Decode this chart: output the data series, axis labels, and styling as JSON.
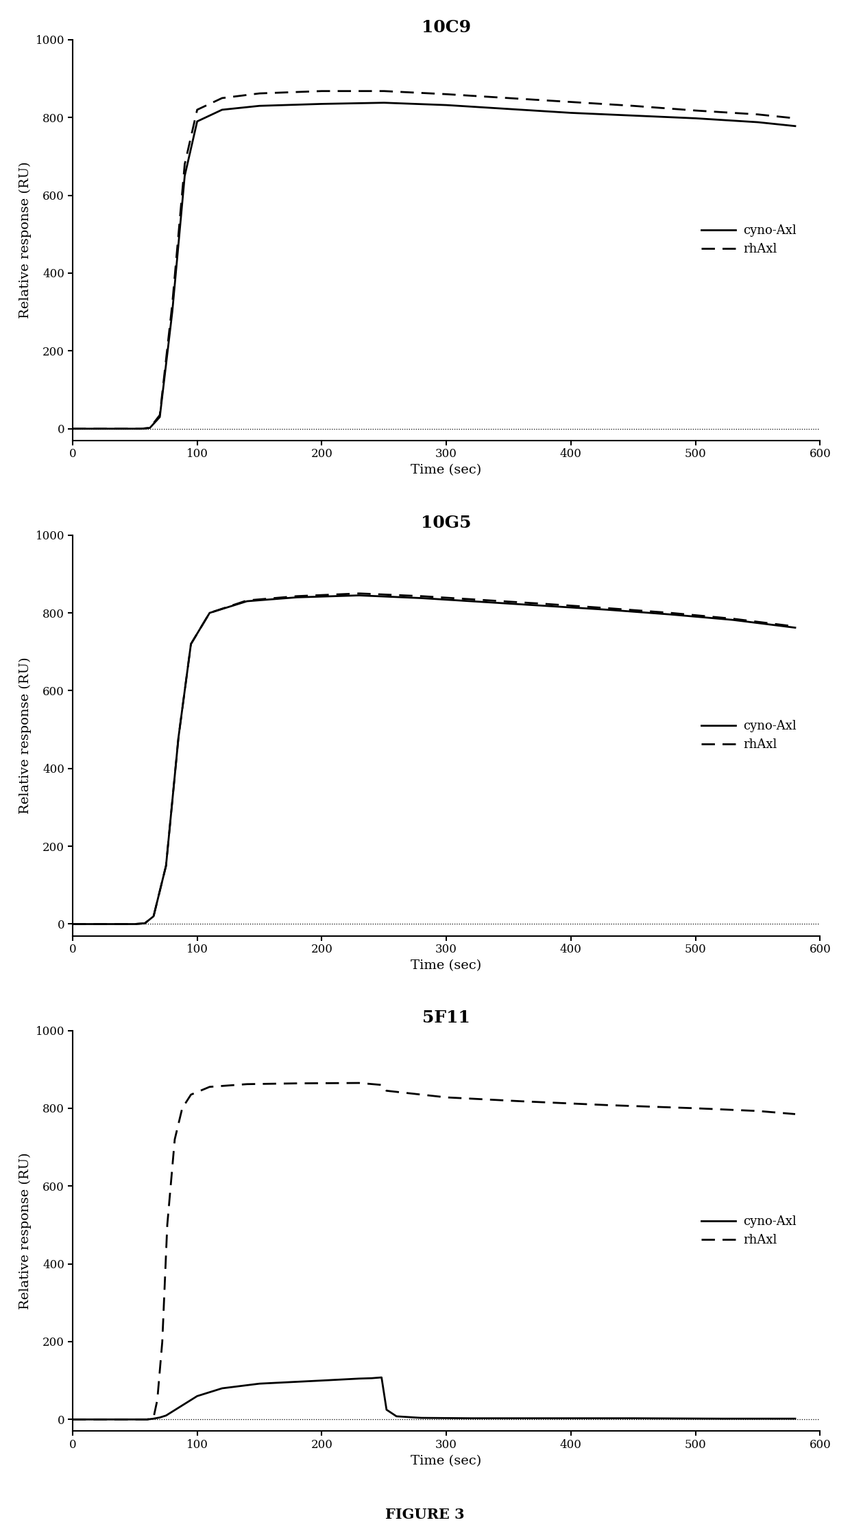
{
  "panels": [
    {
      "title": "10C9",
      "cyno_x": [
        0,
        55,
        62,
        70,
        80,
        90,
        100,
        120,
        150,
        200,
        250,
        300,
        350,
        400,
        450,
        500,
        550,
        580
      ],
      "cyno_y": [
        0,
        0,
        2,
        30,
        300,
        650,
        790,
        820,
        830,
        835,
        838,
        832,
        822,
        812,
        805,
        798,
        788,
        778
      ],
      "rh_x": [
        0,
        55,
        62,
        70,
        80,
        90,
        100,
        120,
        150,
        200,
        250,
        300,
        350,
        400,
        450,
        500,
        550,
        580
      ],
      "rh_y": [
        0,
        0,
        2,
        35,
        320,
        680,
        820,
        850,
        862,
        868,
        868,
        860,
        850,
        840,
        830,
        818,
        808,
        798
      ]
    },
    {
      "title": "10G5",
      "cyno_x": [
        0,
        50,
        58,
        65,
        75,
        85,
        95,
        110,
        140,
        180,
        230,
        280,
        330,
        380,
        430,
        480,
        530,
        580
      ],
      "cyno_y": [
        0,
        0,
        2,
        20,
        150,
        480,
        720,
        800,
        830,
        840,
        845,
        838,
        828,
        818,
        808,
        796,
        782,
        762
      ],
      "rh_x": [
        0,
        50,
        58,
        65,
        75,
        85,
        95,
        110,
        140,
        180,
        230,
        280,
        330,
        380,
        430,
        480,
        530,
        580
      ],
      "rh_y": [
        0,
        0,
        2,
        20,
        150,
        480,
        720,
        800,
        832,
        843,
        850,
        843,
        833,
        823,
        812,
        800,
        785,
        765
      ]
    },
    {
      "title": "5F11",
      "cyno_x": [
        0,
        60,
        65,
        70,
        75,
        80,
        90,
        100,
        120,
        150,
        200,
        230,
        240,
        248,
        252,
        260,
        280,
        320,
        380,
        450,
        520,
        580
      ],
      "cyno_y": [
        0,
        0,
        2,
        5,
        10,
        20,
        40,
        60,
        80,
        92,
        100,
        105,
        106,
        108,
        25,
        8,
        4,
        3,
        3,
        3,
        2,
        2
      ],
      "rh_x": [
        0,
        60,
        65,
        68,
        72,
        76,
        82,
        88,
        95,
        110,
        140,
        180,
        230,
        248,
        252,
        300,
        360,
        430,
        500,
        550,
        580
      ],
      "rh_y": [
        0,
        0,
        5,
        50,
        200,
        500,
        720,
        800,
        835,
        855,
        862,
        864,
        865,
        860,
        845,
        828,
        818,
        808,
        800,
        793,
        785
      ]
    }
  ],
  "xlabel": "Time (sec)",
  "ylabel": "Relative response (RU)",
  "xlim": [
    0,
    600
  ],
  "ylim": [
    -30,
    1000
  ],
  "yticks": [
    0,
    200,
    400,
    600,
    800,
    1000
  ],
  "xticks": [
    0,
    100,
    200,
    300,
    400,
    500,
    600
  ],
  "legend_solid": "cyno-Axl",
  "legend_dashed": "rhAxl",
  "figure_caption": "FIGURE 3",
  "line_color": "#000000",
  "bg_color": "#ffffff",
  "linewidth": 2.0,
  "legend_fontsize": 13,
  "axis_fontsize": 14,
  "title_fontsize": 18,
  "caption_fontsize": 15
}
